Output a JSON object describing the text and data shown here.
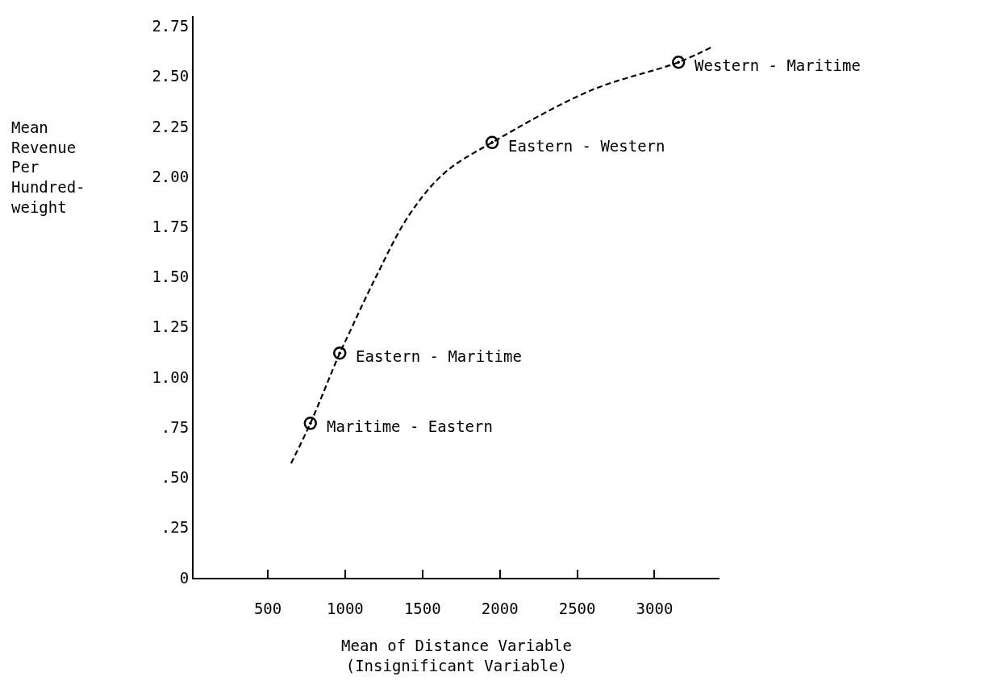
{
  "chart_data": {
    "type": "scatter",
    "xlabel": "Mean of Distance Variable\n(Insignificant Variable)",
    "ylabel": "Mean\nRevenue\nPer\nHundred-\nweight",
    "series": [
      {
        "type": "line",
        "color": "#000000",
        "line_style": "dashed",
        "marker": "none",
        "x": [
          650,
          775,
          965,
          1020,
          1180,
          1415,
          1645,
          1950,
          2590,
          3155,
          3380
        ],
        "values": [
          0.57,
          0.77,
          1.12,
          1.21,
          1.47,
          1.81,
          2.02,
          2.17,
          2.43,
          2.57,
          2.65
        ]
      },
      {
        "color": "#000000",
        "x": [
          775,
          965,
          1950,
          3155
        ],
        "values": [
          0.77,
          1.12,
          2.17,
          2.57
        ]
      }
    ],
    "annotations": [
      {
        "text": "Maritime - Eastern",
        "x": 775,
        "y": 0.77
      },
      {
        "text": "Eastern - Maritime",
        "x": 965,
        "y": 1.12
      },
      {
        "text": "Eastern - Western",
        "x": 1950,
        "y": 2.17
      },
      {
        "text": "Western - Maritime",
        "x": 3155,
        "y": 2.57
      }
    ],
    "xlim": [
      20,
      3420
    ],
    "ylim": [
      0,
      2.8
    ],
    "xticks": [
      500,
      1000,
      1500,
      2000,
      2500,
      3000
    ],
    "yticks": [
      {
        "value": 0,
        "label": "0"
      },
      {
        "value": 0.25,
        "label": ".25"
      },
      {
        "value": 0.5,
        "label": ".50"
      },
      {
        "value": 0.75,
        "label": ".75"
      },
      {
        "value": 1.0,
        "label": "1.00"
      },
      {
        "value": 1.25,
        "label": "1.25"
      },
      {
        "value": 1.5,
        "label": "1.50"
      },
      {
        "value": 1.75,
        "label": "1.75"
      },
      {
        "value": 2.0,
        "label": "2.00"
      },
      {
        "value": 2.25,
        "label": "2.25"
      },
      {
        "value": 2.5,
        "label": "2.50"
      },
      {
        "value": 2.75,
        "label": "2.75"
      }
    ],
    "marker": "circle"
  }
}
